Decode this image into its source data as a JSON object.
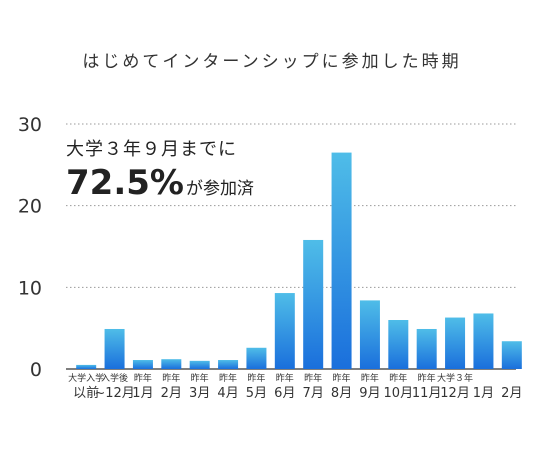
{
  "chart_data": {
    "type": "bar",
    "title": "はじめてインターンシップに参加した時期",
    "categories": [
      {
        "line1": "大学入学",
        "line2": "以前"
      },
      {
        "line1": "入学後",
        "line2": "~12月"
      },
      {
        "line1": "昨年",
        "line2": "1月"
      },
      {
        "line1": "昨年",
        "line2": "2月"
      },
      {
        "line1": "昨年",
        "line2": "3月"
      },
      {
        "line1": "昨年",
        "line2": "4月"
      },
      {
        "line1": "昨年",
        "line2": "5月"
      },
      {
        "line1": "昨年",
        "line2": "6月"
      },
      {
        "line1": "昨年",
        "line2": "7月"
      },
      {
        "line1": "昨年",
        "line2": "8月"
      },
      {
        "line1": "昨年",
        "line2": "9月"
      },
      {
        "line1": "昨年",
        "line2": "10月"
      },
      {
        "line1": "昨年",
        "line2": "11月"
      },
      {
        "line1": "大学３年",
        "line2": "12月"
      },
      {
        "line1": "",
        "line2": "1月"
      },
      {
        "line1": "",
        "line2": "2月"
      }
    ],
    "values": [
      0.5,
      4.9,
      1.1,
      1.2,
      1.0,
      1.1,
      2.6,
      9.3,
      15.8,
      26.5,
      8.4,
      6.0,
      4.9,
      6.3,
      6.8,
      3.4
    ],
    "ylim": [
      0,
      30
    ],
    "yticks": [
      0,
      10,
      20,
      30
    ],
    "grid": true,
    "bar_color_top": "#4fbde8",
    "bar_color_bottom": "#1a6fdc",
    "annotation": {
      "line1": "大学３年９月までに",
      "big": "72.5%",
      "suffix": "が参加済"
    }
  }
}
